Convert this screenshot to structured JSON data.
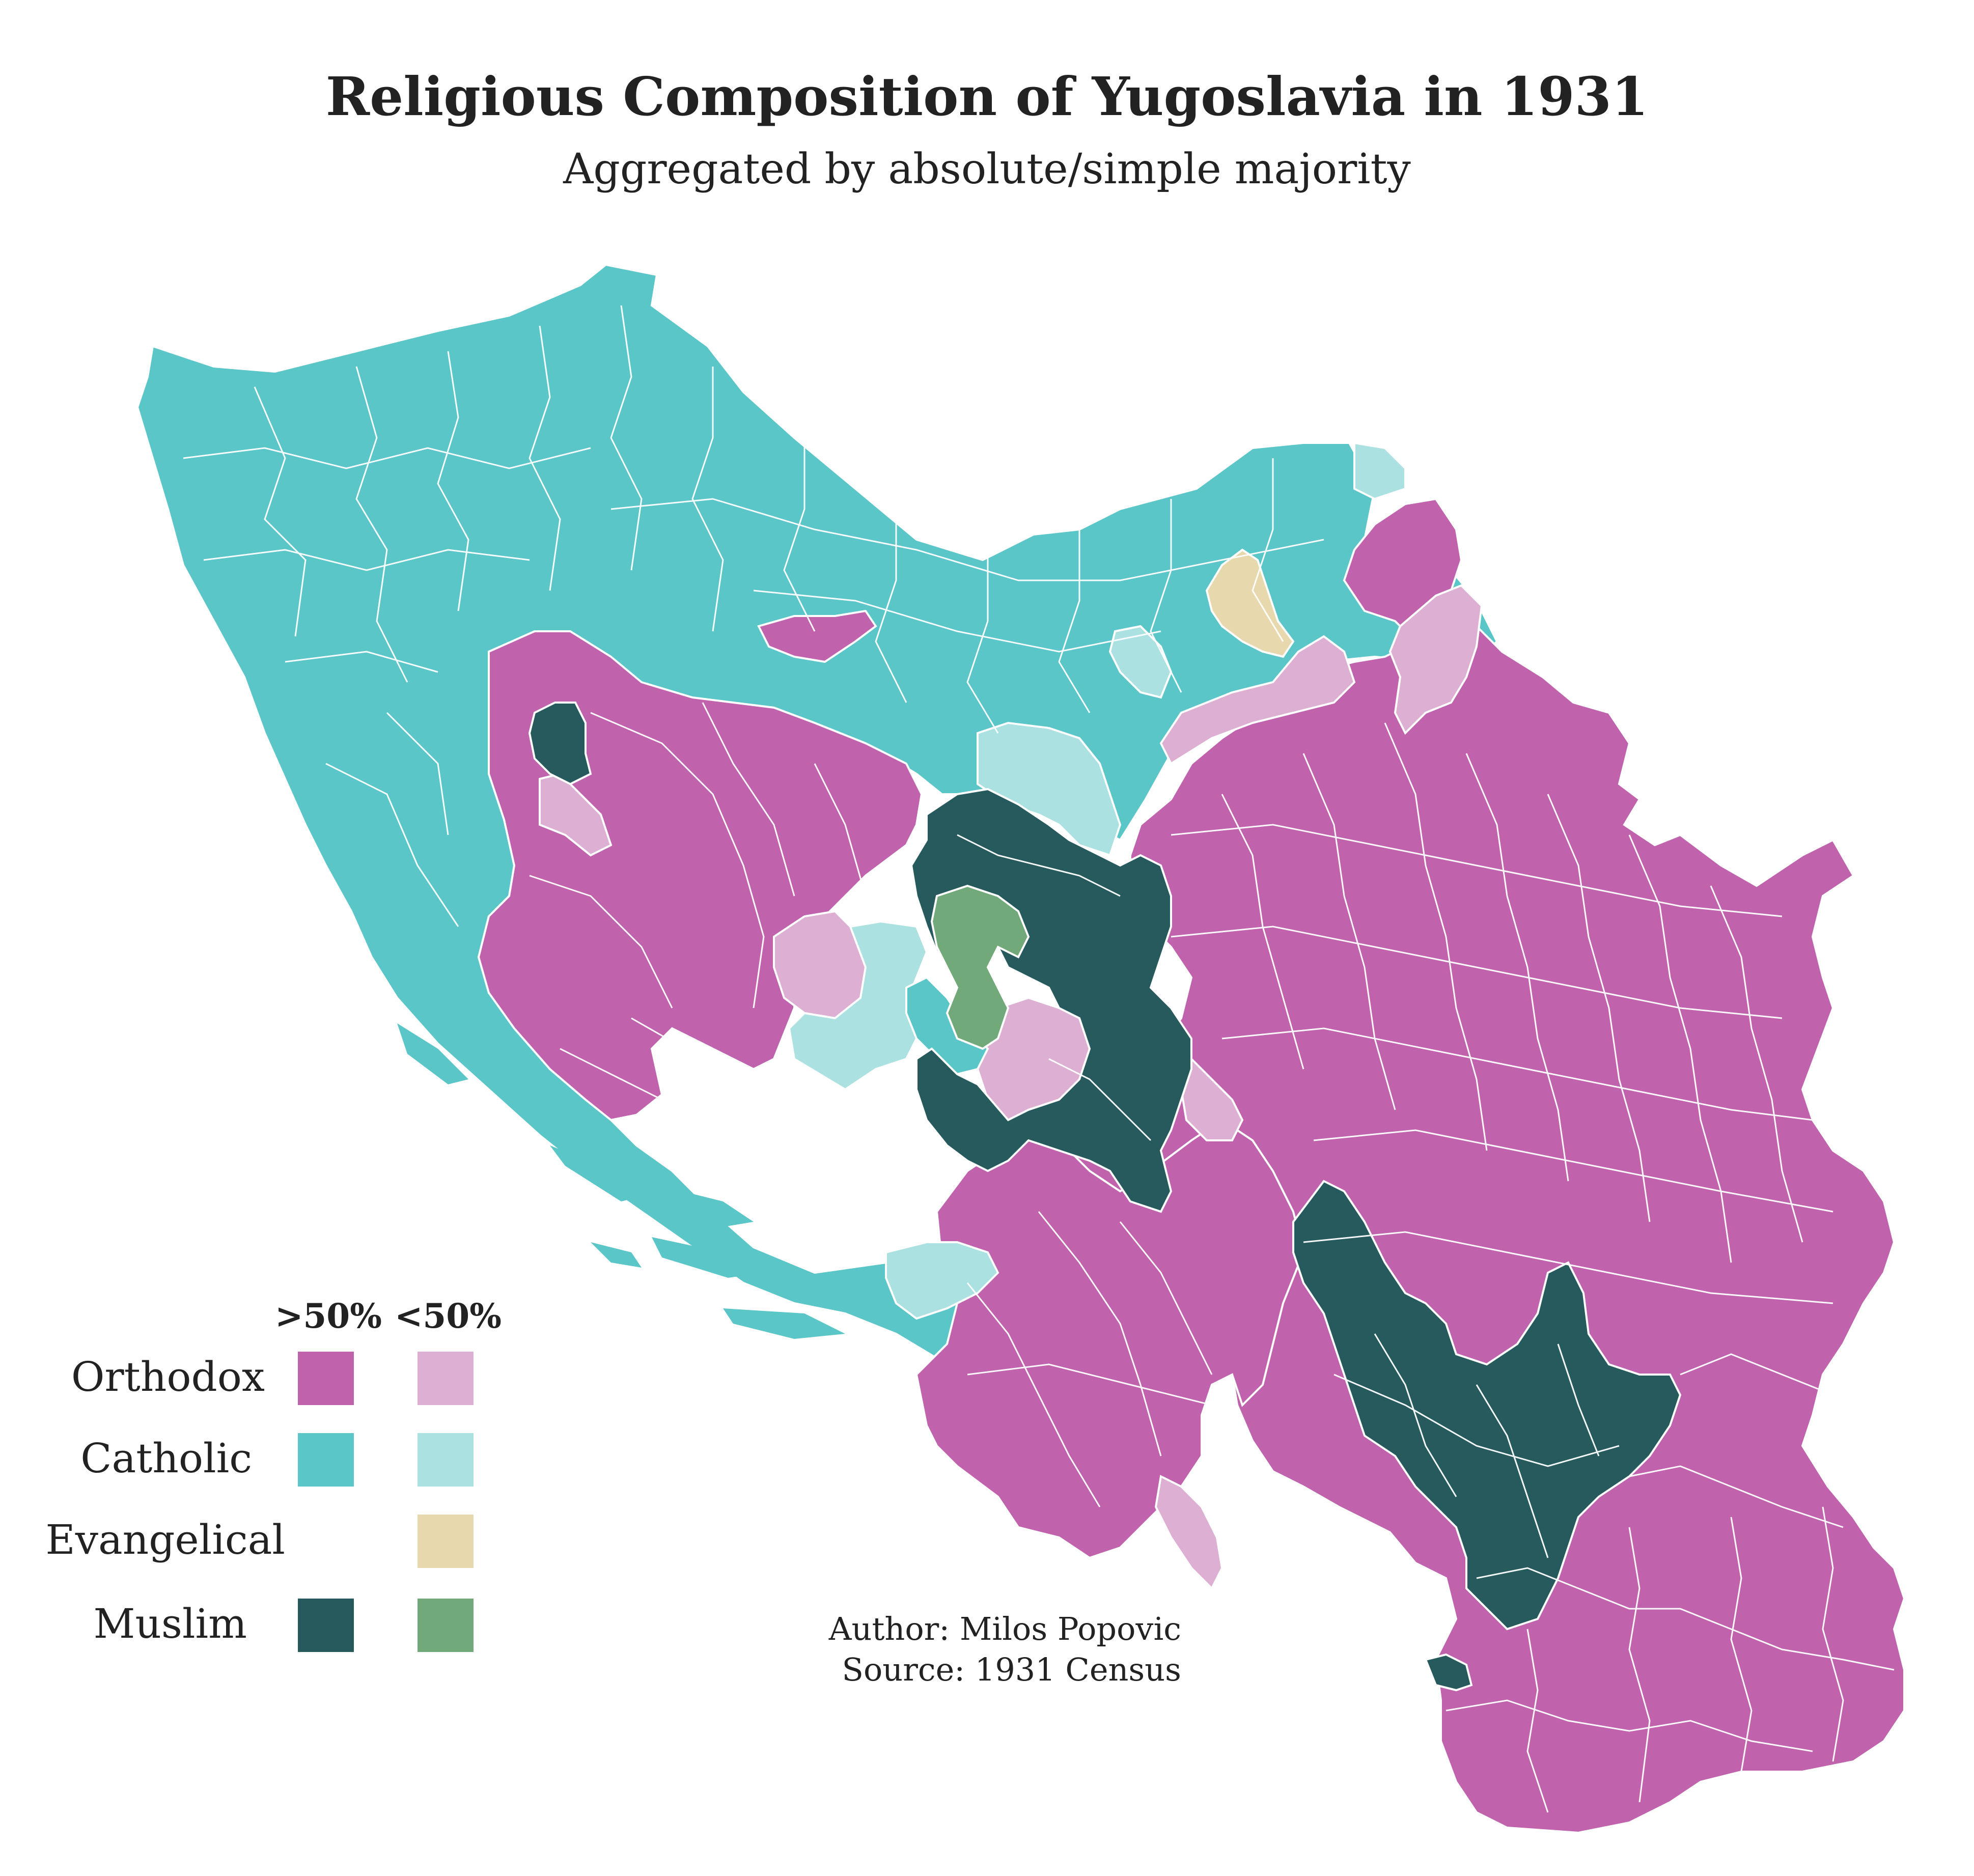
{
  "title": "Religious Composition of Yugoslavia in 1931",
  "subtitle": "Aggregated by absolute/simple majority",
  "legend": {
    "header_absolute": ">50%",
    "header_simple": "<50%",
    "rows": [
      {
        "label": "Orthodox",
        "absolute_color": "#c063ac",
        "simple_color": "#ddafd2"
      },
      {
        "label": "Catholic",
        "absolute_color": "#5bc6c8",
        "simple_color": "#abe1e1"
      },
      {
        "label": "Evangelical",
        "absolute_color": null,
        "simple_color": "#e7d9ad"
      },
      {
        "label": "Muslim",
        "absolute_color": "#265a5c",
        "simple_color": "#72a97b"
      }
    ]
  },
  "credits": {
    "author": "Author: Milos Popovic",
    "source": "1931 Census",
    "source_line": "Source: 1931 Census"
  },
  "colors": {
    "border": "#ffffff",
    "background": "#ffffff",
    "text": "#222222"
  }
}
